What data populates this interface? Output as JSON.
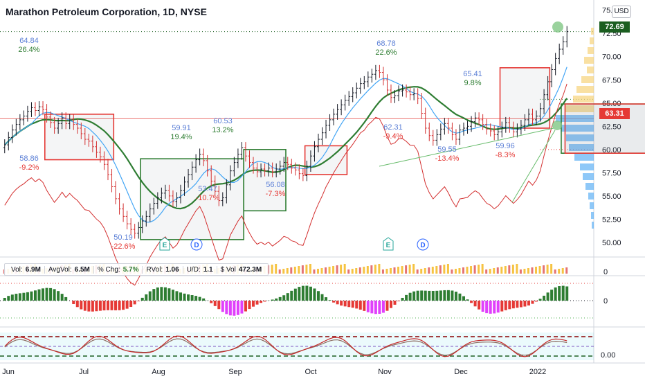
{
  "header": {
    "title": "Marathon Petroleum Corporation, 1D, NYSE",
    "currency": "USD"
  },
  "price_axis": {
    "ticks": [
      "75.00",
      "72.50",
      "70.00",
      "67.50",
      "65.00",
      "62.50",
      "60.00",
      "57.50",
      "55.00",
      "52.50",
      "50.00"
    ]
  },
  "price_tags": {
    "last": "72.69",
    "reference": "63.31"
  },
  "time_axis": [
    "Jun",
    "Jul",
    "Aug",
    "Sep",
    "Oct",
    "Nov",
    "Dec",
    "2022"
  ],
  "volume_stats": {
    "vol_label": "Vol:",
    "vol": "6.9M",
    "avg_label": "AvgVol:",
    "avg": "6.5M",
    "chg_label": "% Chg:",
    "chg": "5.7%",
    "rvol_label": "RVol:",
    "rvol": "1.06",
    "ud_label": "U/D:",
    "ud": "1.1",
    "dvol_label": "$ Vol",
    "dvol": "472.3M"
  },
  "pane_labels": {
    "volume_zero": "0",
    "histogram_zero": "0",
    "oscillator_zero": "0.00"
  },
  "markers": [
    {
      "label": "E",
      "x": "Aug",
      "kind": "earnings"
    },
    {
      "label": "D",
      "x": "Aug",
      "kind": "dividend"
    },
    {
      "label": "E",
      "x": "Nov",
      "kind": "earnings"
    },
    {
      "label": "D",
      "x": "Nov",
      "kind": "dividend"
    }
  ],
  "colors": {
    "up": "#089981",
    "down": "#d32f2f",
    "sma_fast": "#42a5f5",
    "sma_slow": "#2e7d32",
    "rs_line": "#d32f2f",
    "box_red": "#e53935",
    "box_green": "#2e7d32",
    "last_tag": "#1b5e20",
    "ref_tag": "#e53935"
  },
  "chart_data": {
    "type": "candlestick",
    "title": "Marathon Petroleum Corporation, 1D, NYSE",
    "ylim": [
      48.5,
      75.5
    ],
    "y_ticks": [
      50,
      52.5,
      55,
      57.5,
      60,
      62.5,
      65,
      67.5,
      70,
      72.5,
      75
    ],
    "x_ticks": [
      "Jun",
      "Jul",
      "Aug",
      "Sep",
      "Oct",
      "Nov",
      "Dec",
      "2022"
    ],
    "closes": [
      60.5,
      61.3,
      62.1,
      62.7,
      63.2,
      63.6,
      64.1,
      64.5,
      64.2,
      64.6,
      64.3,
      63.5,
      62.9,
      62.3,
      62.8,
      63.4,
      62.8,
      63.2,
      62.7,
      62.3,
      61.7,
      61.1,
      60.9,
      60.3,
      59.7,
      59.2,
      58.4,
      57.3,
      56.0,
      54.7,
      53.6,
      52.8,
      52.0,
      51.4,
      51.0,
      51.6,
      52.3,
      52.8,
      53.6,
      54.2,
      54.8,
      55.3,
      55.6,
      55.0,
      54.4,
      54.8,
      55.6,
      56.5,
      57.3,
      58.1,
      58.9,
      59.5,
      58.8,
      57.7,
      56.6,
      55.5,
      54.5,
      54.8,
      56.2,
      57.7,
      58.6,
      59.5,
      60.2,
      59.3,
      58.6,
      58.0,
      57.6,
      57.9,
      57.7,
      58.0,
      57.6,
      57.9,
      58.2,
      58.6,
      58.4,
      58.0,
      57.8,
      57.4,
      57.2,
      58.2,
      59.3,
      60.3,
      61.1,
      61.8,
      62.6,
      63.2,
      63.8,
      64.3,
      64.8,
      65.3,
      65.7,
      66.1,
      66.6,
      67.1,
      67.3,
      67.8,
      68.1,
      68.5,
      68.3,
      67.5,
      66.4,
      65.6,
      65.8,
      66.3,
      66.4,
      66.2,
      65.9,
      66.0,
      65.5,
      63.9,
      62.3,
      61.5,
      61.0,
      61.6,
      62.2,
      62.8,
      62.3,
      61.6,
      61.1,
      62.1,
      62.3,
      62.5,
      63.0,
      63.4,
      63.2,
      62.7,
      62.2,
      62.0,
      61.6,
      61.9,
      62.4,
      62.9,
      62.4,
      61.9,
      62.2,
      62.6,
      63.2,
      63.8,
      63.2,
      63.6,
      64.4,
      65.9,
      67.3,
      68.6,
      69.8,
      70.8,
      71.6,
      72.69
    ],
    "annotations": [
      {
        "text": "64.84",
        "sub": "26.4%",
        "type": "high"
      },
      {
        "text": "58.86",
        "sub": "-9.2%",
        "type": "low"
      },
      {
        "text": "50.19",
        "sub": "-22.6%",
        "type": "low"
      },
      {
        "text": "59.91",
        "sub": "19.4%",
        "type": "high"
      },
      {
        "text": "53.47",
        "sub": "-10.7%",
        "type": "low"
      },
      {
        "text": "60.53",
        "sub": "13.2%",
        "type": "high"
      },
      {
        "text": "56.08",
        "sub": "-7.3%",
        "type": "low"
      },
      {
        "text": "68.78",
        "sub": "22.6%",
        "type": "high"
      },
      {
        "text": "62.31",
        "sub": "-9.4%",
        "type": "low"
      },
      {
        "text": "65.41",
        "sub": "9.8%",
        "type": "high"
      },
      {
        "text": "59.55",
        "sub": "-13.4%",
        "type": "low"
      },
      {
        "text": "59.96",
        "sub": "-8.3%",
        "type": "low"
      }
    ],
    "boxes": [
      {
        "color": "red",
        "from": 11,
        "to": 28,
        "low": 58.9,
        "high": 63.8
      },
      {
        "color": "green",
        "from": 36,
        "to": 62,
        "low": 50.3,
        "high": 59.0
      },
      {
        "color": "green",
        "from": 63,
        "to": 73,
        "low": 53.4,
        "high": 60.0
      },
      {
        "color": "red",
        "from": 79,
        "to": 89,
        "low": 57.3,
        "high": 60.4
      },
      {
        "color": "red",
        "from": 130,
        "to": 142,
        "low": 62.3,
        "high": 68.8
      },
      {
        "color": "green",
        "from": 146,
        "to": 175,
        "low": 59.6,
        "high": 64.9
      },
      {
        "color": "red",
        "from": 147,
        "to": 175,
        "low": 59.6,
        "high": 64.9
      }
    ]
  }
}
